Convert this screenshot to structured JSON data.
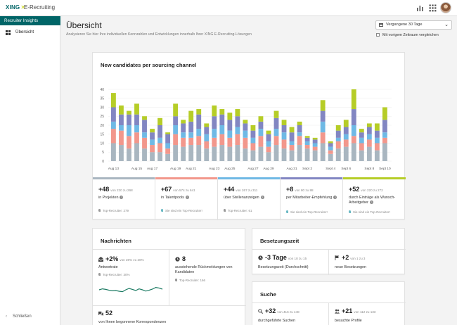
{
  "header": {
    "logo_brand": "XING",
    "logo_product": "E-Recruiting"
  },
  "sidebar": {
    "section": "Recruiter Insights",
    "items": [
      {
        "label": "Übersicht",
        "icon": "dashboard-grid-icon"
      }
    ],
    "collapse_label": "Schließen"
  },
  "page": {
    "title": "Übersicht",
    "subtitle": "Analysieren Sie hier Ihre individuellen Kennzahlen und Entwicklungen innerhalb Ihrer XING E-Recruiting-Lösungen",
    "period": "Vergangene 30 Tage",
    "compare_label": "Mit vorigem Zeitraum vergleichen"
  },
  "chart_card": {
    "title": "New candidates per sourcing channel"
  },
  "chart_data": {
    "type": "bar",
    "stacked": true,
    "ylim": [
      0,
      40
    ],
    "yticks": [
      0,
      5,
      10,
      15,
      20,
      25,
      30,
      35,
      40
    ],
    "grid": true,
    "x_tick_labels": [
      "Aug 13",
      "Aug 15",
      "Aug 17",
      "Aug 19",
      "Aug 21",
      "Aug 23",
      "Aug 25",
      "Aug 27",
      "Aug 29",
      "Aug 31",
      "Sept 2",
      "Sept 4",
      "Sept 6",
      "Sept 8",
      "Sept 10"
    ],
    "series_colors": [
      "#a9b6c0",
      "#f2978c",
      "#6fb9e5",
      "#8286c2",
      "#b6cd27"
    ],
    "series": [
      {
        "values": [
          10,
          9,
          7,
          10,
          7,
          5,
          5,
          4,
          9,
          8,
          9,
          9,
          7,
          8,
          9,
          8,
          9,
          7,
          6,
          8,
          5,
          9,
          7,
          6,
          9,
          7,
          6,
          10,
          4,
          7,
          8,
          10,
          6,
          8,
          6,
          10
        ]
      },
      {
        "values": [
          8,
          8,
          7,
          6,
          6,
          4,
          5,
          3,
          6,
          5,
          4,
          5,
          4,
          5,
          6,
          5,
          6,
          6,
          4,
          6,
          3,
          5,
          5,
          3,
          5,
          2,
          2,
          6,
          2,
          4,
          4,
          4,
          4,
          4,
          4,
          3
        ]
      },
      {
        "values": [
          4,
          3,
          6,
          4,
          3,
          3,
          3,
          3,
          5,
          3,
          3,
          4,
          4,
          5,
          5,
          4,
          4,
          4,
          3,
          4,
          3,
          4,
          4,
          2,
          2,
          2,
          2,
          6,
          2,
          2,
          3,
          6,
          3,
          3,
          3,
          3
        ]
      },
      {
        "values": [
          8,
          6,
          6,
          6,
          7,
          4,
          7,
          5,
          5,
          5,
          6,
          8,
          4,
          7,
          6,
          6,
          6,
          4,
          4,
          4,
          4,
          6,
          4,
          5,
          4,
          2,
          2,
          6,
          2,
          4,
          4,
          9,
          3,
          4,
          4,
          7
        ]
      },
      {
        "values": [
          8,
          5,
          2,
          6,
          2,
          2,
          4,
          1,
          7,
          2,
          6,
          3,
          2,
          6,
          3,
          4,
          4,
          2,
          3,
          3,
          2,
          4,
          3,
          3,
          2,
          1,
          1,
          6,
          1,
          3,
          4,
          11,
          2,
          2,
          4,
          7
        ]
      }
    ]
  },
  "kpis": [
    {
      "value": "+48",
      "of": "von 220 zu 268",
      "label": "in Projekten",
      "sub": "Top-Recruiter: 279",
      "color": "#a9b6c0",
      "info": true
    },
    {
      "value": "+67",
      "of": "von 574 zu 641",
      "label": "in Talentpools",
      "sub": "Sie sind ein Top-Recruiter!",
      "color": "#f2978c",
      "info": true
    },
    {
      "value": "+44",
      "of": "von 267 zu 311",
      "label": "über Stellenanzeigen",
      "sub": "Top-Recruiter: 61",
      "color": "#6fb9e5",
      "info": true
    },
    {
      "value": "+8",
      "of": "von 80 zu 88",
      "label": "per Mitarbeiter-Empfehlung",
      "sub": "Sie sind ein Top-Recruiter!",
      "color": "#8286c2",
      "info": true
    },
    {
      "value": "+52",
      "of": "von 220 zu 272",
      "label": "durch Einträge als Wunsch-Arbeitgeber",
      "sub": "Sie sind ein Top-Recruiter!",
      "color": "#b6cd27",
      "info": true
    }
  ],
  "messages_card": {
    "title": "Nachrichten",
    "response_rate": {
      "value": "+2%",
      "of": "von 26% zu 28%",
      "label": "Antwortrate",
      "sub": "Top-Recruiter: 30%",
      "icon": "envelope-open-icon"
    },
    "pending": {
      "value": "8",
      "label": "ausstehende Rückmeldungen von Kandidaten",
      "sub": "Top-Recruiter: 166",
      "icon": "clock-icon"
    },
    "conversations": {
      "value": "52",
      "label": "von Ihnen begonnene Korrespondenzen",
      "icon": "chat-bubbles-icon"
    },
    "sparkline": [
      0.55,
      0.62,
      0.58,
      0.52,
      0.48,
      0.5,
      0.45,
      0.42,
      0.55,
      0.65,
      0.58,
      0.5,
      0.62,
      0.55,
      0.46,
      0.52,
      0.6,
      0.72,
      0.68,
      0.6
    ]
  },
  "time_card": {
    "title": "Besetzungszeit",
    "fill_time": {
      "value": "-3 Tage",
      "of": "von 18 zu 15",
      "label": "Besetzungszeit (Durchschnitt)",
      "icon": "clock-icon"
    },
    "new_hires": {
      "value": "+2",
      "of": "von 1 zu 3",
      "label": "neue Besetzungen",
      "icon": "flag-icon"
    }
  },
  "search_card": {
    "title": "Suche",
    "searches": {
      "value": "+32",
      "of": "von 416 zu 448",
      "label": "durchgeführte Suchen",
      "icon": "search-icon"
    },
    "profiles": {
      "value": "+21",
      "of": "von 112 zu 133",
      "label": "besuchte Profile",
      "icon": "users-icon"
    }
  }
}
